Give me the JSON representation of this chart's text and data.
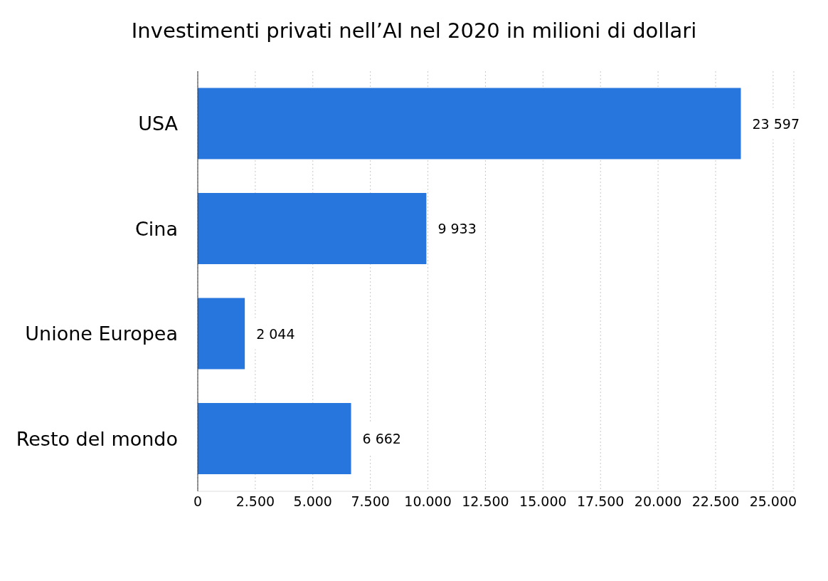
{
  "chart_data": {
    "type": "bar",
    "orientation": "horizontal",
    "title": "Investimenti privati nell’AI nel 2020 in milioni di dollari",
    "categories": [
      "USA",
      "Cina",
      "Unione Europea",
      "Resto del mondo"
    ],
    "values": [
      23597,
      9933,
      2044,
      6662
    ],
    "value_labels": [
      "23 597",
      "9 933",
      "2 044",
      "6 662"
    ],
    "color": "#2776de",
    "xlim": [
      0,
      25900
    ],
    "xticks": [
      0,
      {
        "value": 2500,
        "label": "2.500"
      },
      {
        "value": 5000,
        "label": "5.000"
      },
      {
        "value": 7500,
        "label": "7.500"
      },
      {
        "value": 10000,
        "label": "10.000"
      },
      {
        "value": 12500,
        "label": "12.500"
      },
      {
        "value": 15000,
        "label": "15.000"
      },
      {
        "value": 17500,
        "label": "17.500"
      },
      {
        "value": 20000,
        "label": "20.000"
      },
      {
        "value": 22500,
        "label": "22.500"
      },
      {
        "value": 25000,
        "label": "25.000"
      }
    ],
    "grid": "x"
  }
}
